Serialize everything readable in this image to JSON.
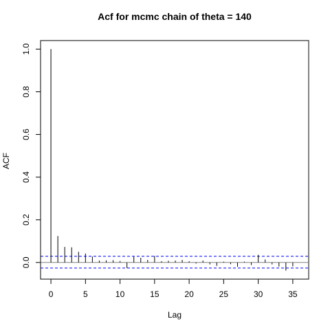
{
  "chart_data": {
    "type": "bar",
    "title": "Acf for mcmc chain of theta = 140",
    "xlabel": "Lag",
    "ylabel": "ACF",
    "xlim": [
      -1.5,
      37.3
    ],
    "ylim": [
      -0.078,
      1.04
    ],
    "x_ticks": [
      0,
      5,
      10,
      15,
      20,
      25,
      30,
      35
    ],
    "y_ticks": [
      0.0,
      0.2,
      0.4,
      0.6,
      0.8,
      1.0
    ],
    "x_tick_labels": [
      "0",
      "5",
      "10",
      "15",
      "20",
      "25",
      "30",
      "35"
    ],
    "y_tick_labels": [
      "0.0",
      "0.2",
      "0.4",
      "0.6",
      "0.8",
      "1.0"
    ],
    "grid": false,
    "legend": "none",
    "confidence_bounds": [
      0.029,
      -0.026
    ],
    "series": [
      {
        "x": [
          0,
          1,
          2,
          3,
          4,
          5,
          6,
          7,
          8,
          9,
          10,
          11,
          12,
          13,
          14,
          15,
          16,
          17,
          18,
          19,
          20,
          21,
          22,
          23,
          24,
          25,
          26,
          27,
          28,
          29,
          30,
          31,
          32,
          33,
          34,
          35
        ],
        "values": [
          1.0,
          0.124,
          0.073,
          0.071,
          0.05,
          0.042,
          0.028,
          0.009,
          0.01,
          0.011,
          0.007,
          -0.026,
          0.027,
          0.022,
          0.012,
          0.031,
          0.006,
          0.008,
          0.009,
          0.012,
          0.006,
          -0.005,
          0.009,
          -0.009,
          -0.016,
          0.004,
          -0.008,
          -0.02,
          0.004,
          -0.012,
          0.036,
          0.014,
          -0.009,
          -0.019,
          -0.038,
          -0.018
        ]
      }
    ],
    "colors": {
      "lines": "#000000",
      "confidence": "#0000ff",
      "zero_line": "#808080"
    }
  }
}
